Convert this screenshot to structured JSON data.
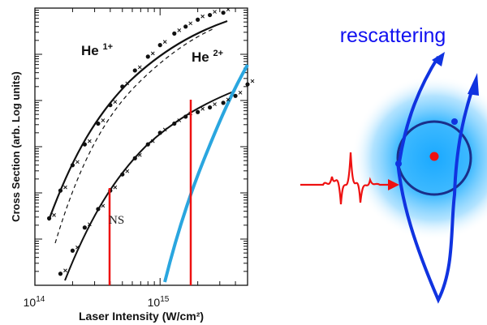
{
  "chart_data": {
    "type": "scatter",
    "title": "",
    "xlabel": "Laser Intensity (W/cm²)",
    "ylabel": "Cross Section (arb. Log units)",
    "x_scale": "log",
    "y_scale": "log",
    "xlim": [
      100000000000000.0,
      5000000000000000.0
    ],
    "ylim_decades": [
      0,
      6
    ],
    "x_ticks": [
      {
        "value": 100000000000000.0,
        "base": "10",
        "exp": "14"
      },
      {
        "value": 1000000000000000.0,
        "base": "10",
        "exp": "15"
      }
    ],
    "series": [
      {
        "name": "He 1+",
        "color": "#111111",
        "x": [
          130000000000000.0,
          160000000000000.0,
          200000000000000.0,
          250000000000000.0,
          320000000000000.0,
          400000000000000.0,
          500000000000000.0,
          630000000000000.0,
          800000000000000.0,
          1000000000000000.0,
          1300000000000000.0,
          1600000000000000.0,
          2000000000000000.0,
          2500000000000000.0,
          3200000000000000.0
        ],
        "y": [
          1.45,
          2.05,
          2.6,
          3.05,
          3.5,
          3.9,
          4.3,
          4.65,
          4.95,
          5.2,
          5.45,
          5.6,
          5.75,
          5.85,
          5.9
        ]
      },
      {
        "name": "He 2+",
        "color": "#111111",
        "x": [
          160000000000000.0,
          200000000000000.0,
          250000000000000.0,
          320000000000000.0,
          400000000000000.0,
          500000000000000.0,
          630000000000000.0,
          800000000000000.0,
          1000000000000000.0,
          1300000000000000.0,
          1600000000000000.0,
          2000000000000000.0,
          2500000000000000.0,
          3200000000000000.0,
          4000000000000000.0,
          5000000000000000.0
        ],
        "y": [
          0.25,
          0.75,
          1.25,
          1.65,
          2.05,
          2.4,
          2.75,
          3.05,
          3.3,
          3.5,
          3.65,
          3.75,
          3.85,
          3.95,
          4.1,
          4.35
        ]
      }
    ],
    "annotations": [
      {
        "text": "He ",
        "sup": "1+",
        "x": 230000000000000.0,
        "y": 5.1
      },
      {
        "text": "He ",
        "sup": "2+",
        "x": 1600000000000000.0,
        "y": 4.7
      },
      {
        "text": "NS",
        "x": 340000000000000.0,
        "y": 1.25
      }
    ]
  },
  "diagram": {
    "label": "rescattering"
  }
}
